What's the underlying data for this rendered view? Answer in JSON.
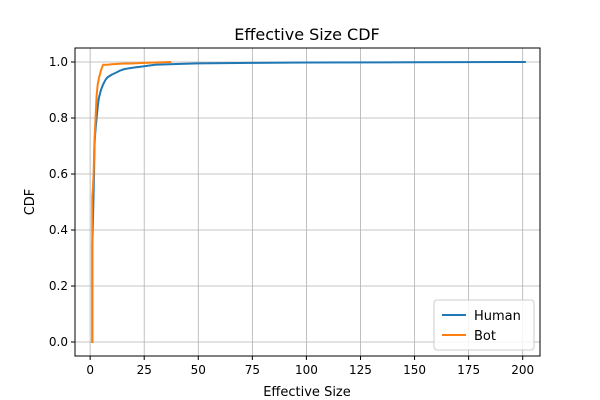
{
  "chart_data": {
    "type": "line",
    "title": "Effective Size CDF",
    "xlabel": "Effective Size",
    "ylabel": "CDF",
    "xlim": [
      -7,
      208
    ],
    "ylim": [
      -0.05,
      1.05
    ],
    "xticks": [
      0,
      25,
      50,
      75,
      100,
      125,
      150,
      175,
      200
    ],
    "yticks": [
      0.0,
      0.2,
      0.4,
      0.6,
      0.8,
      1.0
    ],
    "xtick_labels": [
      "0",
      "25",
      "50",
      "75",
      "100",
      "125",
      "150",
      "175",
      "200"
    ],
    "ytick_labels": [
      "0.0",
      "0.2",
      "0.4",
      "0.6",
      "0.8",
      "1.0"
    ],
    "grid": true,
    "legend_position": "lower-right",
    "series": [
      {
        "name": "Human",
        "color": "#1f77b4",
        "x": [
          1.0,
          1.0,
          1.2,
          1.5,
          1.8,
          2.0,
          2.3,
          2.6,
          3.0,
          3.5,
          4.0,
          5.0,
          6.0,
          7.0,
          8.0,
          10.0,
          12.0,
          14.0,
          16.0,
          20.0,
          25.0,
          30.0,
          40.0,
          50.0,
          75.0,
          100.0,
          150.0,
          201.0
        ],
        "y": [
          0.0,
          0.35,
          0.4,
          0.5,
          0.6,
          0.7,
          0.74,
          0.77,
          0.8,
          0.84,
          0.87,
          0.9,
          0.92,
          0.935,
          0.945,
          0.955,
          0.962,
          0.97,
          0.975,
          0.98,
          0.985,
          0.99,
          0.993,
          0.995,
          0.997,
          0.998,
          0.999,
          1.0
        ]
      },
      {
        "name": "Bot",
        "color": "#ff7f0e",
        "x": [
          1.0,
          1.0,
          1.3,
          1.6,
          2.0,
          2.5,
          3.0,
          3.5,
          4.0,
          5.0,
          6.0,
          8.0,
          10.0,
          15.0,
          20.0,
          25.0,
          30.0,
          37.0
        ],
        "y": [
          0.0,
          0.52,
          0.55,
          0.6,
          0.72,
          0.8,
          0.88,
          0.92,
          0.94,
          0.97,
          0.99,
          0.99,
          0.992,
          0.994,
          0.995,
          0.997,
          0.998,
          1.0
        ]
      }
    ]
  }
}
